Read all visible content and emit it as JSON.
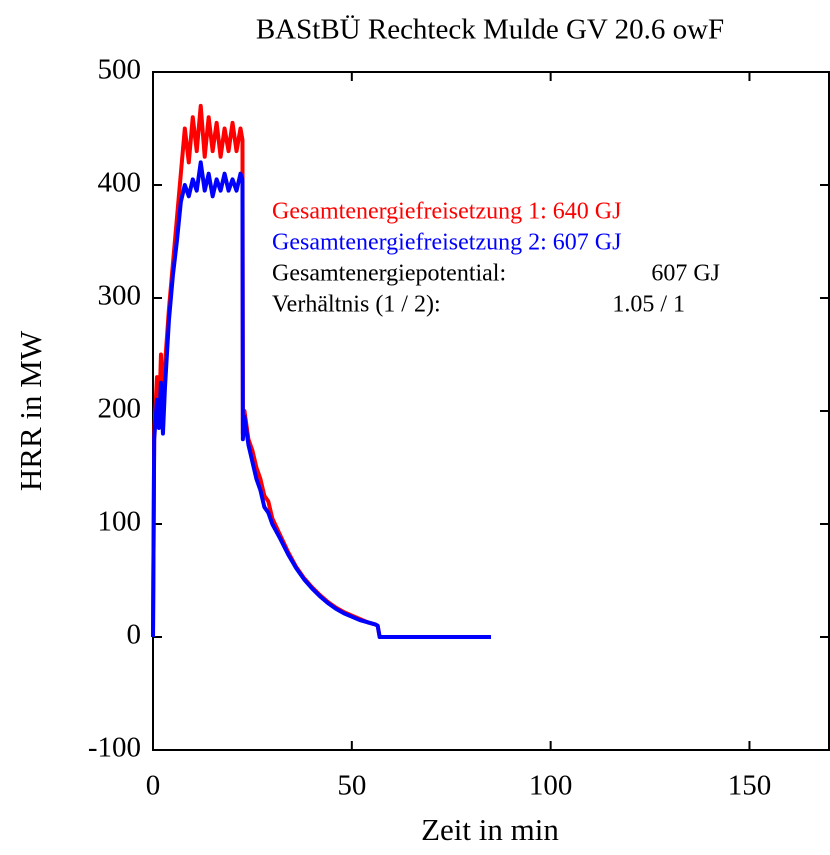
{
  "chart_data": {
    "type": "line",
    "title": "BAStBÜ Rechteck Mulde GV 20.6 owF",
    "x_label": "Zeit in min",
    "y_label": "HRR in MW",
    "x": [
      0,
      0.3,
      1,
      1.5,
      2,
      2.5,
      3,
      4,
      5,
      6,
      7,
      8,
      9,
      10,
      11,
      12,
      13,
      14,
      15,
      16,
      17,
      18,
      19,
      20,
      21,
      22,
      22.5,
      22.6,
      23,
      24,
      25,
      26,
      27,
      28,
      29,
      30,
      32,
      34,
      36,
      38,
      40,
      42,
      44,
      46,
      48,
      50,
      52,
      54,
      56,
      56.5,
      57,
      60,
      70,
      85
    ],
    "series": [
      {
        "name": "Gesamtenergiefreisetzung 1",
        "color": "#ff0000",
        "values": [
          0,
          180,
          230,
          190,
          250,
          185,
          240,
          290,
          330,
          370,
          410,
          450,
          420,
          460,
          430,
          470,
          425,
          460,
          430,
          455,
          425,
          450,
          430,
          455,
          430,
          450,
          440,
          180,
          200,
          175,
          165,
          150,
          140,
          125,
          120,
          105,
          90,
          75,
          62,
          52,
          44,
          37,
          31,
          26,
          22,
          19,
          16,
          13,
          11,
          10,
          0,
          0,
          0,
          0
        ]
      },
      {
        "name": "Gesamtenergiefreisetzung 2",
        "color": "#0000ff",
        "values": [
          0,
          175,
          210,
          185,
          225,
          180,
          220,
          280,
          320,
          350,
          385,
          400,
          390,
          405,
          395,
          420,
          395,
          410,
          390,
          405,
          395,
          410,
          395,
          405,
          395,
          410,
          405,
          175,
          195,
          170,
          155,
          140,
          130,
          115,
          110,
          100,
          87,
          73,
          61,
          51,
          43,
          36,
          30,
          25,
          21,
          18,
          15,
          13,
          11,
          10,
          0,
          0,
          0,
          0
        ]
      }
    ],
    "annotations": [
      {
        "text": "Gesamtenergiefreisetzung 1: 640 GJ",
        "color": "#ff0000"
      },
      {
        "text": "Gesamtenergiefreisetzung 2: 607 GJ",
        "color": "#0000ff"
      },
      {
        "text": "Gesamtenergiepotential:",
        "value": "607 GJ",
        "color": "#000000"
      },
      {
        "text": "Verhältnis (1 / 2):",
        "value": "1.05 / 1",
        "color": "#000000"
      }
    ],
    "xlim": [
      0,
      170
    ],
    "xticks": [
      0,
      50,
      100,
      150
    ],
    "ylim": [
      -100,
      500
    ],
    "yticks": [
      -100,
      0,
      100,
      200,
      300,
      400,
      500
    ],
    "grid": false
  }
}
